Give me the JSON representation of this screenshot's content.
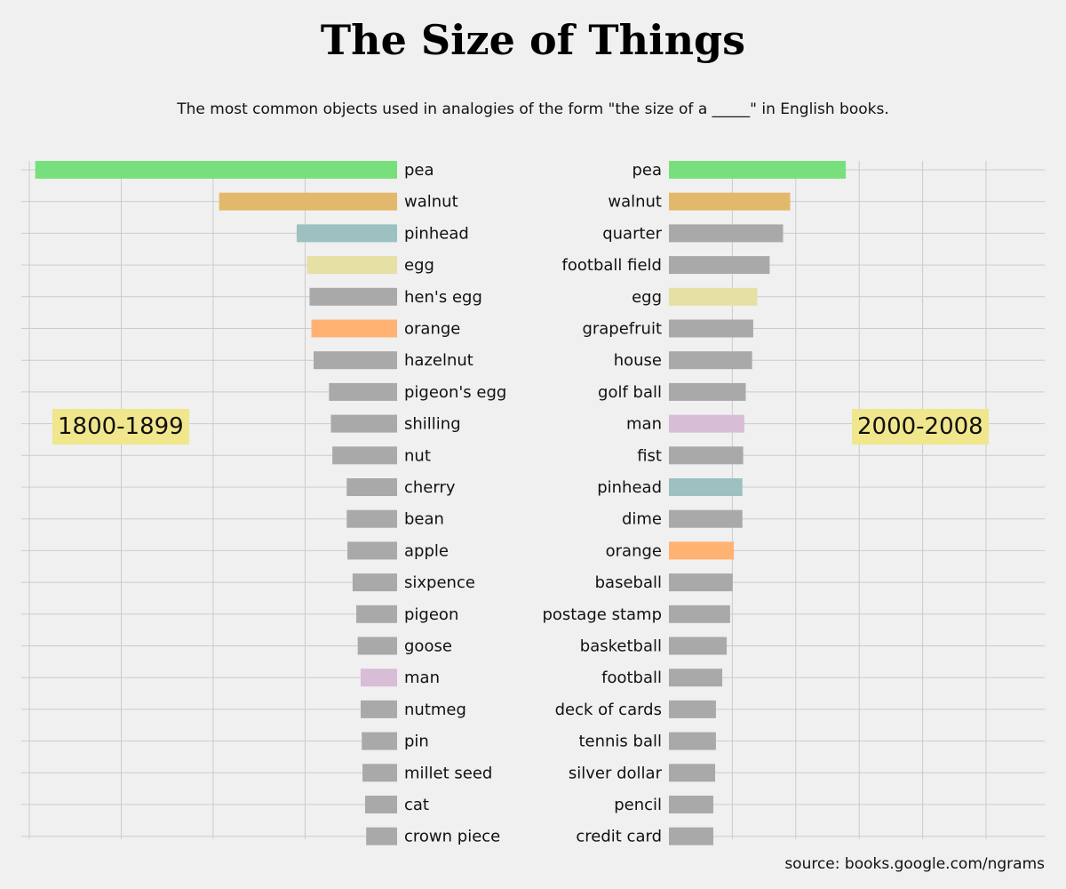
{
  "title": "The Size of Things",
  "subtitle": "The most common objects used in analogies of the form \"the size of a _____\" in English books.",
  "source": "source: books.google.com/ngrams",
  "colors": {
    "pea": "#77e07c",
    "walnut": "#e2b96c",
    "pinhead": "#9dc0c0",
    "egg": "#e5e0a3",
    "orange": "#ffb272",
    "man": "#d7bdd6",
    "default": "#a9a9a9",
    "background": "#f0f0f0",
    "grid": "#cbcbcb",
    "label_box": "#f0e68c"
  },
  "chart_data": [
    {
      "type": "bar",
      "orientation": "horizontal-reversed",
      "period_label": "1800-1899",
      "xlim": [
        0,
        1
      ],
      "categories": [
        "pea",
        "walnut",
        "pinhead",
        "egg",
        "hen's egg",
        "orange",
        "hazelnut",
        "pigeon's egg",
        "shilling",
        "nut",
        "cherry",
        "bean",
        "apple",
        "sixpence",
        "pigeon",
        "goose",
        "man",
        "nutmeg",
        "pin",
        "millet seed",
        "cat",
        "crown piece"
      ],
      "values": [
        0.984,
        0.484,
        0.273,
        0.245,
        0.238,
        0.233,
        0.227,
        0.185,
        0.18,
        0.176,
        0.137,
        0.137,
        0.135,
        0.121,
        0.111,
        0.107,
        0.099,
        0.099,
        0.096,
        0.094,
        0.087,
        0.084
      ]
    },
    {
      "type": "bar",
      "orientation": "horizontal",
      "period_label": "2000-2008",
      "xlim": [
        0,
        1
      ],
      "categories": [
        "pea",
        "walnut",
        "quarter",
        "football field",
        "egg",
        "grapefruit",
        "house",
        "golf ball",
        "man",
        "fist",
        "pinhead",
        "dime",
        "orange",
        "baseball",
        "postage stamp",
        "basketball",
        "football",
        "deck of cards",
        "tennis ball",
        "silver dollar",
        "pencil",
        "credit card"
      ],
      "values": [
        0.474,
        0.325,
        0.306,
        0.27,
        0.237,
        0.226,
        0.223,
        0.206,
        0.202,
        0.199,
        0.197,
        0.197,
        0.174,
        0.171,
        0.164,
        0.155,
        0.143,
        0.126,
        0.126,
        0.124,
        0.119,
        0.119
      ]
    }
  ]
}
